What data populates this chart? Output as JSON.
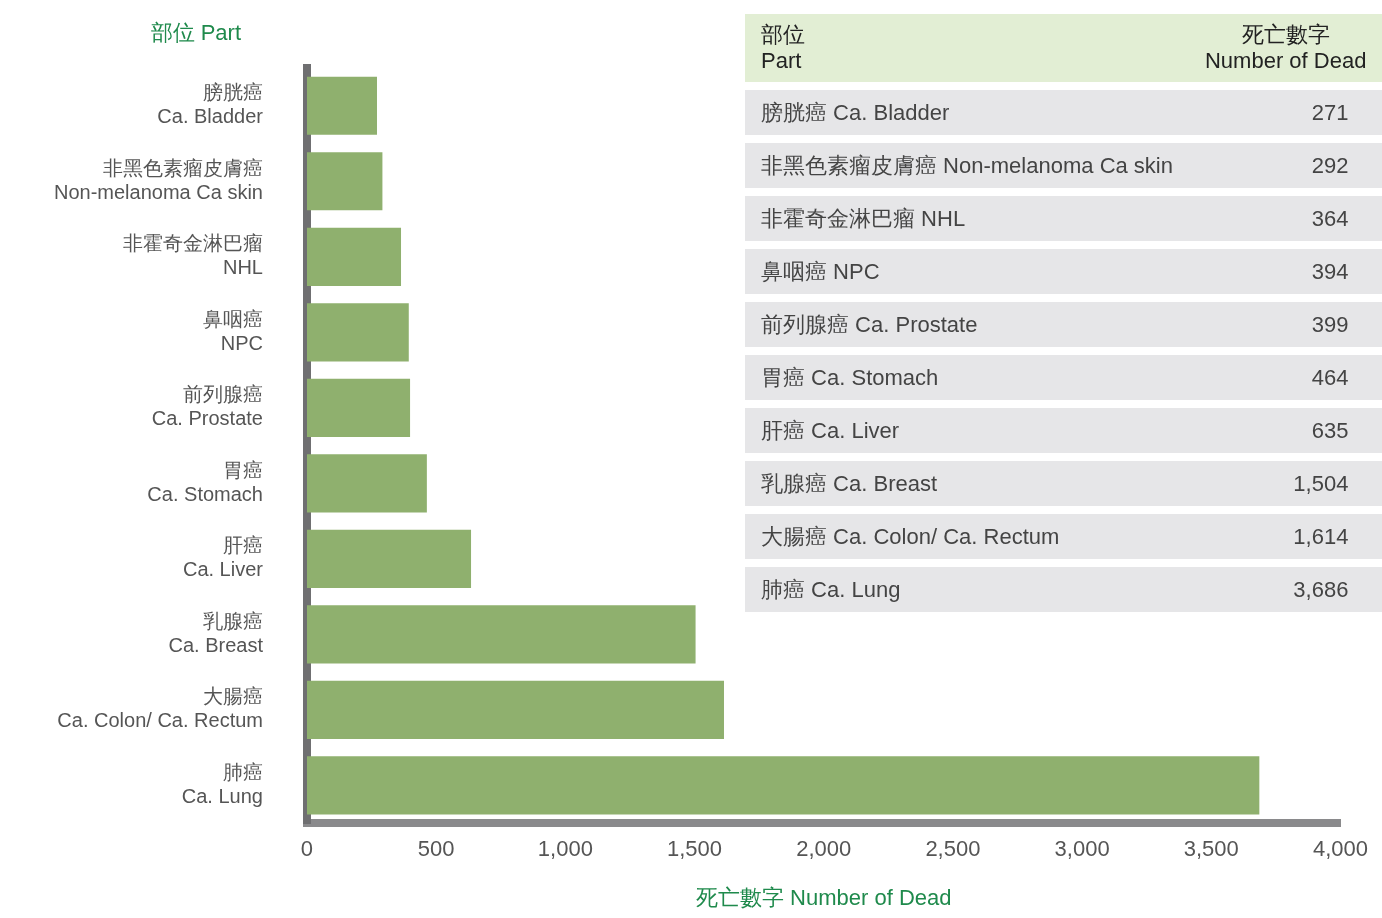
{
  "chart_data": [
    {
      "type": "bar",
      "orientation": "horizontal",
      "xlabel": "死亡數字 Number of Dead",
      "ylabel": "部位 Part",
      "categories": [
        "膀胱癌\nCa. Bladder",
        "非黑色素瘤皮膚癌\nNon-melanoma Ca skin",
        "非霍奇金淋巴瘤\nNHL",
        "鼻咽癌\nNPC",
        "前列腺癌\nCa. Prostate",
        "胃癌\nCa. Stomach",
        "肝癌\nCa. Liver",
        "乳腺癌\nCa. Breast",
        "大腸癌\nCa. Colon/ Ca. Rectum",
        "肺癌\nCa. Lung"
      ],
      "values": [
        271,
        292,
        364,
        394,
        399,
        464,
        635,
        1504,
        1614,
        3686
      ],
      "color": "#8fb06e",
      "xlim": [
        0,
        4000
      ],
      "xticks": [
        0,
        500,
        {
          "value": 1000,
          "label": "1,000"
        },
        {
          "value": 1500,
          "label": "1,500"
        },
        {
          "value": 2000,
          "label": "2,000"
        },
        {
          "value": 2500,
          "label": "2,500"
        },
        {
          "value": 3000,
          "label": "3,000"
        },
        {
          "value": 3500,
          "label": "3,500"
        },
        {
          "value": 4000,
          "label": "4,000"
        }
      ],
      "grid": false,
      "legend": false
    },
    {
      "type": "other",
      "annotations": [
        "部位\nPart",
        "死亡數字\nNumber of Dead"
      ],
      "categories": [
        "膀胱癌 Ca. Bladder",
        "非黑色素瘤皮膚癌 Non-melanoma Ca skin",
        "非霍奇金淋巴瘤 NHL",
        "鼻咽癌 NPC",
        "前列腺癌 Ca. Prostate",
        "胃癌 Ca. Stomach",
        "肝癌 Ca. Liver",
        "乳腺癌 Ca. Breast",
        "大腸癌 Ca. Colon/ Ca. Rectum",
        "肺癌 Ca. Lung"
      ],
      "values": [
        271,
        292,
        364,
        394,
        399,
        464,
        635,
        1504,
        1614,
        3686
      ],
      "value_labels": [
        "271",
        "292",
        "364",
        "394",
        "399",
        "464",
        "635",
        "1,504",
        "1,614",
        "3,686"
      ]
    }
  ]
}
